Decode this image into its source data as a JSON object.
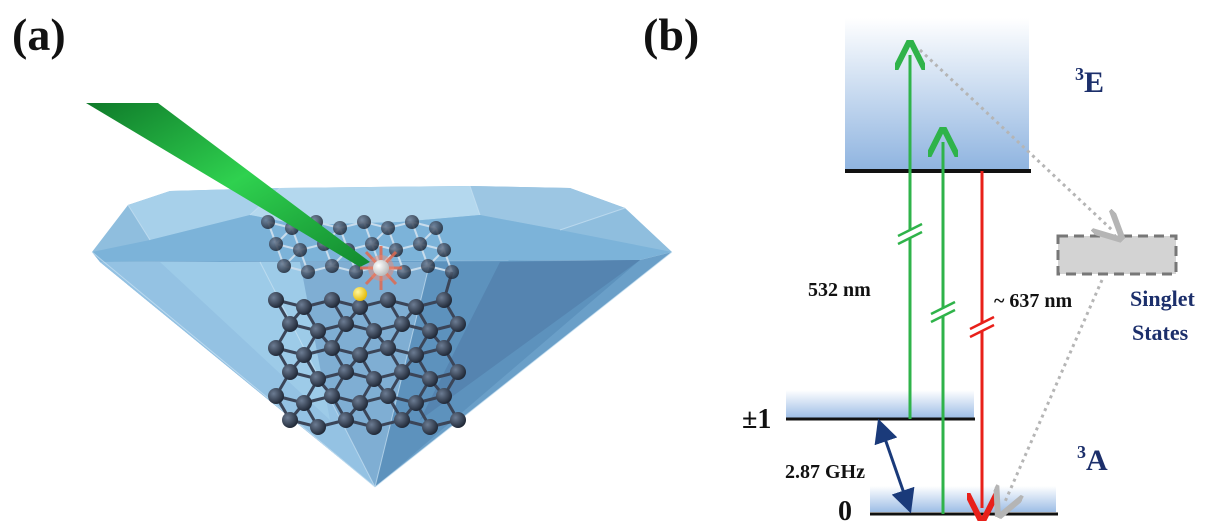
{
  "panels": {
    "a_label": "(a)",
    "b_label": "(b)"
  },
  "energy_diagram": {
    "excited_state": {
      "term": "E",
      "multiplicity": "3"
    },
    "ground_state": {
      "term": "A",
      "multiplicity": "3"
    },
    "singlet_label_line1": "Singlet",
    "singlet_label_line2": "States",
    "excitation_wavelength": "532 nm",
    "emission_wavelength": "~ 637 nm",
    "zero_field_splitting": "2.87 GHz",
    "sublevel_pm1": "±1",
    "sublevel_0": "0"
  },
  "colors": {
    "diamond": "#7fb2d6",
    "laser": "#22b14c",
    "excitation_arrow": "#2fb34a",
    "emission_arrow": "#e8201a",
    "state_label": "#1c2f6b",
    "splitting_arrow": "#1a3a7a",
    "dotted_arrow": "#b5b5b5"
  },
  "icons": [
    "diamond-crystal",
    "green-laser-beam",
    "carbon-lattice",
    "nv-vacancy-atom",
    "nitrogen-atom"
  ]
}
